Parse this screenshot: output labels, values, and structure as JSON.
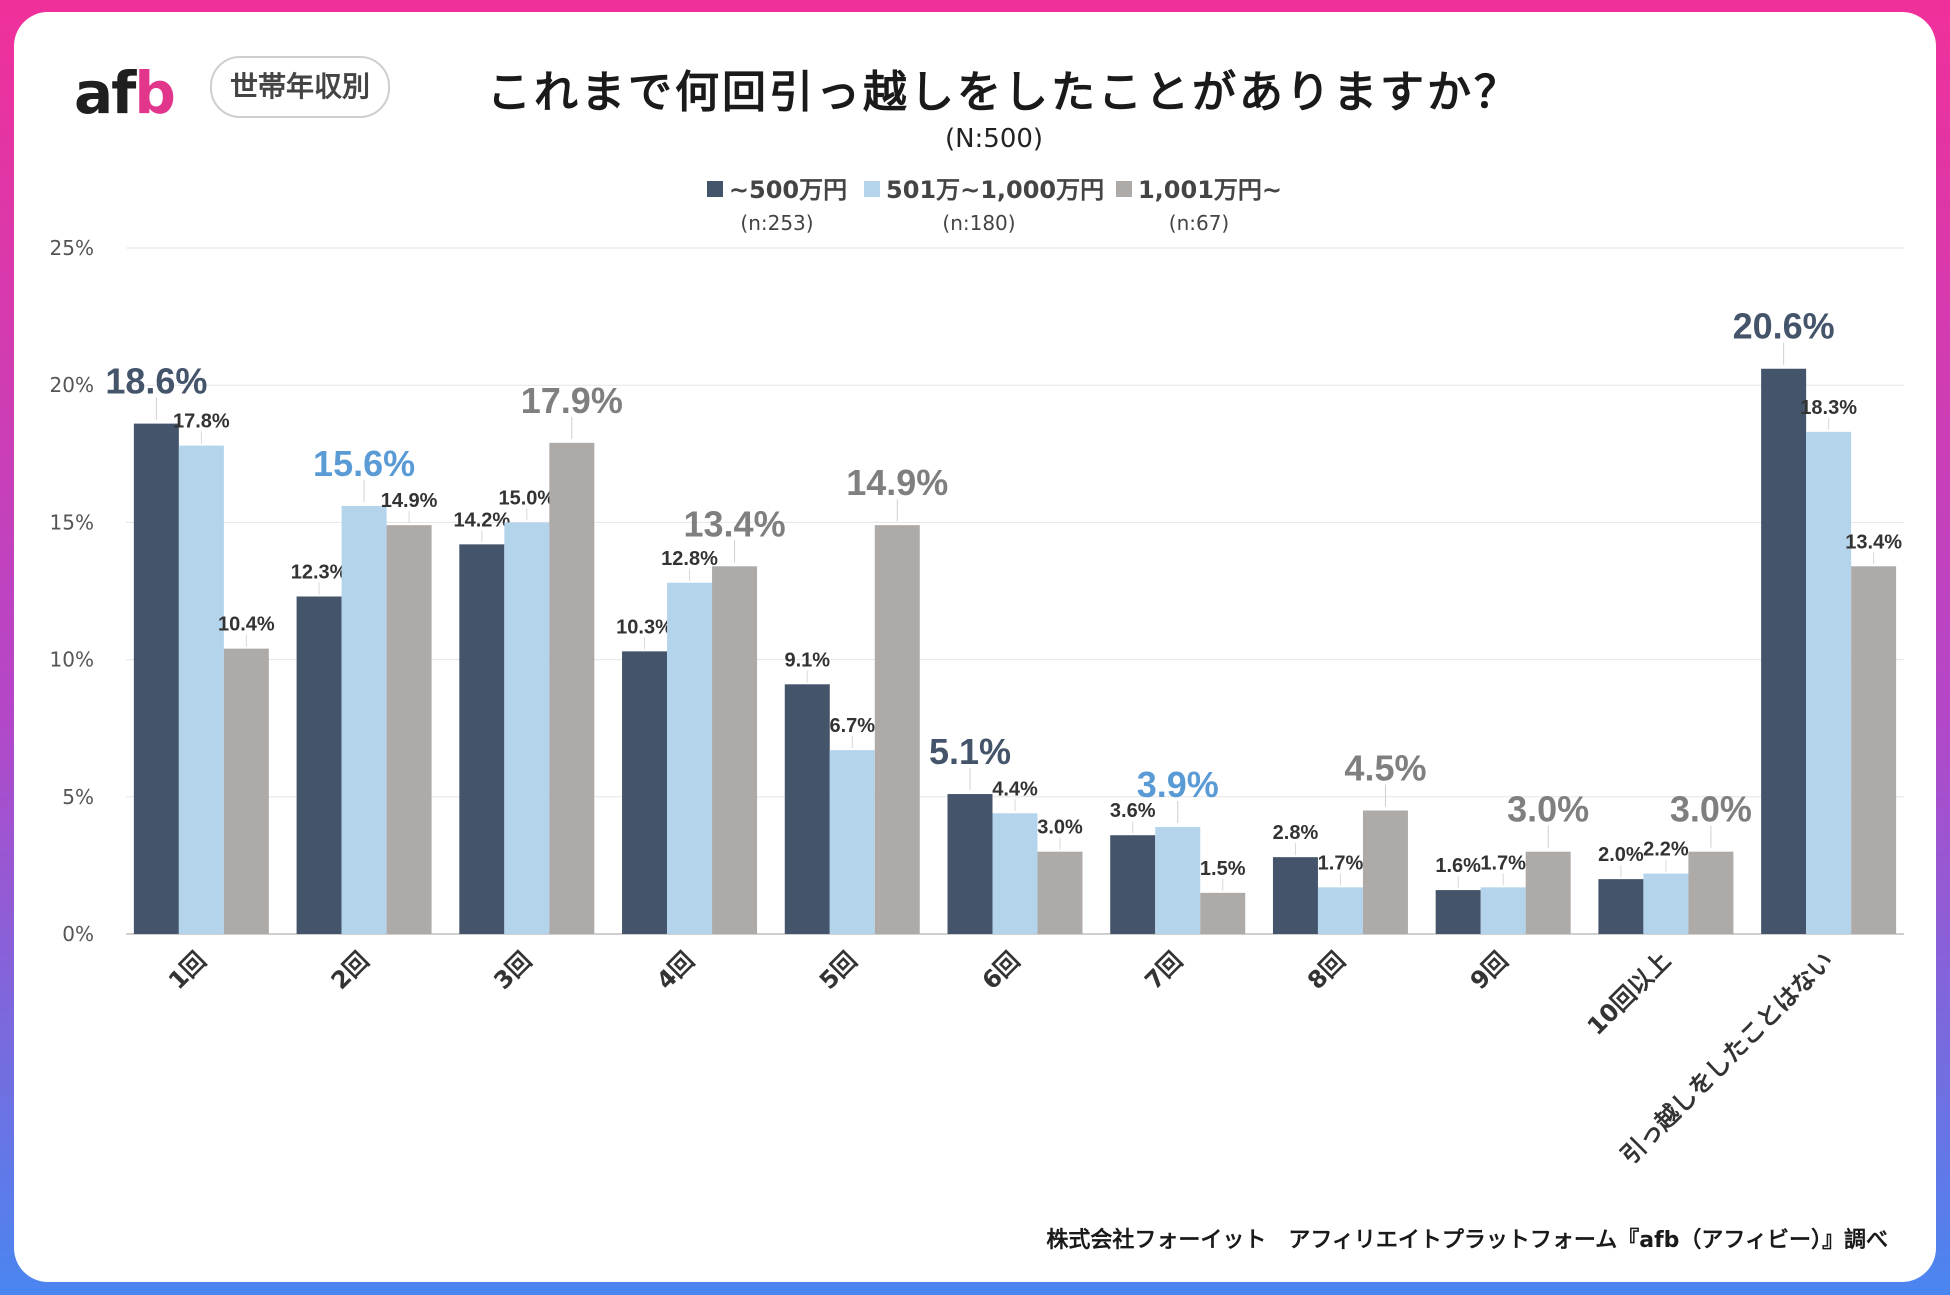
{
  "logo": {
    "text_main": "af",
    "text_accent": "b"
  },
  "tag": "世帯年収別",
  "title": "これまで何回引っ越しをしたことがありますか？",
  "subtitle": "(N:500)",
  "footer": "株式会社フォーイット　アフィリエイトプラットフォーム『afb（アフィビー）』調べ",
  "colors": {
    "series1": "#44546a",
    "series2": "#b4d4ec",
    "series3": "#aeaaa8",
    "highlight_blue": "#5b9bd5"
  },
  "chart_data": {
    "type": "bar",
    "title": "これまで何回引っ越しをしたことがありますか？",
    "ylim": [
      0,
      25
    ],
    "yticks": [
      "0%",
      "5%",
      "10%",
      "15%",
      "20%",
      "25%"
    ],
    "ytick_values": [
      0,
      5,
      10,
      15,
      20,
      25
    ],
    "grid": true,
    "categories": [
      "1回",
      "2回",
      "3回",
      "4回",
      "5回",
      "6回",
      "7回",
      "8回",
      "9回",
      "10回以上",
      "引っ越しをしたことはない"
    ],
    "series": [
      {
        "name": "~500万円",
        "n": "(n:253)",
        "color": "#44546a",
        "values": [
          18.6,
          12.3,
          14.2,
          10.3,
          9.1,
          5.1,
          3.6,
          2.8,
          1.6,
          2.0,
          20.6
        ],
        "labels": [
          "18.6%",
          "12.3%",
          "14.2%",
          "10.3%",
          "9.1%",
          "5.1%",
          "3.6%",
          "2.8%",
          "1.6%",
          "2.0%",
          "20.6%"
        ]
      },
      {
        "name": "501万~1,000万円",
        "n": "(n:180)",
        "color": "#b4d4ec",
        "values": [
          17.8,
          15.6,
          15.0,
          12.8,
          6.7,
          4.4,
          3.9,
          1.7,
          1.7,
          2.2,
          18.3
        ],
        "labels": [
          "17.8%",
          "15.6%",
          "15.0%",
          "12.8%",
          "6.7%",
          "4.4%",
          "3.9%",
          "1.7%",
          "1.7%",
          "2.2%",
          "18.3%"
        ]
      },
      {
        "name": "1,001万円~",
        "n": "(n:67)",
        "color": "#aeaaa8",
        "values": [
          10.4,
          14.9,
          17.9,
          13.4,
          14.9,
          3.0,
          1.5,
          4.5,
          3.0,
          3.0,
          13.4
        ],
        "labels": [
          "10.4%",
          "14.9%",
          "17.9%",
          "13.4%",
          "14.9%",
          "3.0%",
          "1.5%",
          "4.5%",
          "3.0%",
          "3.0%",
          "13.4%"
        ]
      }
    ],
    "highlights": [
      {
        "category": 0,
        "series": 0
      },
      {
        "category": 1,
        "series": 1
      },
      {
        "category": 2,
        "series": 2
      },
      {
        "category": 3,
        "series": 2
      },
      {
        "category": 4,
        "series": 2
      },
      {
        "category": 5,
        "series": 0
      },
      {
        "category": 6,
        "series": 1
      },
      {
        "category": 7,
        "series": 2
      },
      {
        "category": 8,
        "series": 2
      },
      {
        "category": 9,
        "series": 2
      },
      {
        "category": 10,
        "series": 0
      }
    ]
  }
}
